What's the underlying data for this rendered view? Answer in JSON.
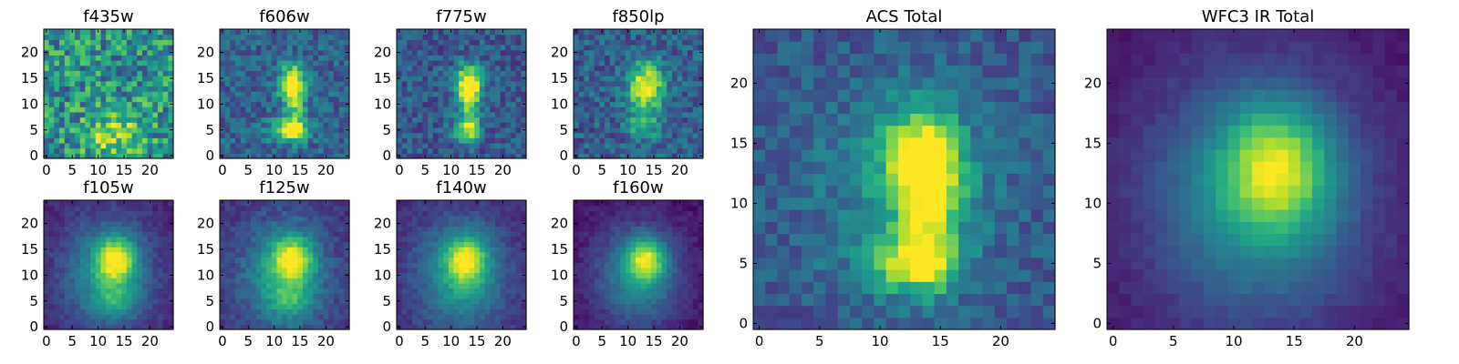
{
  "figure": {
    "background": "#ffffff",
    "colormap": "viridis"
  },
  "chart_data": [
    {
      "type": "heatmap",
      "title": "f435w",
      "grid_size": 24,
      "xticks": [
        0,
        5,
        10,
        15,
        20
      ],
      "yticks": [
        0,
        5,
        10,
        15,
        20
      ],
      "xlim": [
        -0.5,
        24.5
      ],
      "ylim": [
        -0.5,
        24.5
      ],
      "grid": false,
      "model": {
        "noise": 0.55,
        "floor": 0.5,
        "seed": 11,
        "components": [
          {
            "x": 13,
            "y": 4,
            "sx": 4.0,
            "sy": 3.0,
            "amp": 0.35
          }
        ]
      }
    },
    {
      "type": "heatmap",
      "title": "f606w",
      "grid_size": 24,
      "xticks": [
        0,
        5,
        10,
        15,
        20
      ],
      "yticks": [
        0,
        5,
        10,
        15,
        20
      ],
      "xlim": [
        -0.5,
        24.5
      ],
      "ylim": [
        -0.5,
        24.5
      ],
      "grid": false,
      "model": {
        "noise": 0.3,
        "floor": 0.32,
        "seed": 23,
        "components": [
          {
            "x": 13.5,
            "y": 14,
            "sx": 1.8,
            "sy": 2.6,
            "amp": 0.7
          },
          {
            "x": 13,
            "y": 5,
            "sx": 2.6,
            "sy": 1.5,
            "amp": 0.65
          },
          {
            "x": 14,
            "y": 9,
            "sx": 1.3,
            "sy": 3.5,
            "amp": 0.35
          }
        ]
      }
    },
    {
      "type": "heatmap",
      "title": "f775w",
      "grid_size": 24,
      "xticks": [
        0,
        5,
        10,
        15,
        20
      ],
      "yticks": [
        0,
        5,
        10,
        15,
        20
      ],
      "xlim": [
        -0.5,
        24.5
      ],
      "ylim": [
        -0.5,
        24.5
      ],
      "grid": false,
      "model": {
        "noise": 0.3,
        "floor": 0.28,
        "seed": 37,
        "components": [
          {
            "x": 13.5,
            "y": 14,
            "sx": 1.8,
            "sy": 2.6,
            "amp": 0.75
          },
          {
            "x": 13,
            "y": 5,
            "sx": 1.8,
            "sy": 1.6,
            "amp": 0.5
          },
          {
            "x": 13.5,
            "y": 9,
            "sx": 1.3,
            "sy": 3.5,
            "amp": 0.4
          }
        ]
      }
    },
    {
      "type": "heatmap",
      "title": "f850lp",
      "grid_size": 24,
      "xticks": [
        0,
        5,
        10,
        15,
        20
      ],
      "yticks": [
        0,
        5,
        10,
        15,
        20
      ],
      "xlim": [
        -0.5,
        24.5
      ],
      "ylim": [
        -0.5,
        24.5
      ],
      "grid": false,
      "model": {
        "noise": 0.32,
        "floor": 0.3,
        "seed": 41,
        "components": [
          {
            "x": 13.5,
            "y": 13.5,
            "sx": 2.4,
            "sy": 3.2,
            "amp": 0.75
          },
          {
            "x": 13,
            "y": 6,
            "sx": 2.2,
            "sy": 2.0,
            "amp": 0.35
          }
        ]
      }
    },
    {
      "type": "heatmap",
      "title": "f105w",
      "grid_size": 24,
      "xticks": [
        0,
        5,
        10,
        15,
        20
      ],
      "yticks": [
        0,
        5,
        10,
        15,
        20
      ],
      "xlim": [
        -0.5,
        24.5
      ],
      "ylim": [
        -0.5,
        24.5
      ],
      "grid": false,
      "model": {
        "noise": 0.12,
        "floor": 0.1,
        "seed": 53,
        "components": [
          {
            "x": 13.5,
            "y": 13,
            "sx": 2.5,
            "sy": 3.0,
            "amp": 0.6
          },
          {
            "x": 12,
            "y": 10,
            "sx": 6.0,
            "sy": 7.5,
            "amp": 0.45
          },
          {
            "x": 13,
            "y": 5,
            "sx": 2.5,
            "sy": 2.0,
            "amp": 0.2
          }
        ]
      }
    },
    {
      "type": "heatmap",
      "title": "f125w",
      "grid_size": 24,
      "xticks": [
        0,
        5,
        10,
        15,
        20
      ],
      "yticks": [
        0,
        5,
        10,
        15,
        20
      ],
      "xlim": [
        -0.5,
        24.5
      ],
      "ylim": [
        -0.5,
        24.5
      ],
      "grid": false,
      "model": {
        "noise": 0.15,
        "floor": 0.14,
        "seed": 61,
        "components": [
          {
            "x": 13.5,
            "y": 13,
            "sx": 2.6,
            "sy": 3.0,
            "amp": 0.55
          },
          {
            "x": 12,
            "y": 10,
            "sx": 6.0,
            "sy": 7.5,
            "amp": 0.45
          },
          {
            "x": 13,
            "y": 5,
            "sx": 2.5,
            "sy": 2.0,
            "amp": 0.2
          }
        ]
      }
    },
    {
      "type": "heatmap",
      "title": "f140w",
      "grid_size": 24,
      "xticks": [
        0,
        5,
        10,
        15,
        20
      ],
      "yticks": [
        0,
        5,
        10,
        15,
        20
      ],
      "xlim": [
        -0.5,
        24.5
      ],
      "ylim": [
        -0.5,
        24.5
      ],
      "grid": false,
      "model": {
        "noise": 0.12,
        "floor": 0.12,
        "seed": 71,
        "components": [
          {
            "x": 13,
            "y": 13,
            "sx": 2.6,
            "sy": 3.0,
            "amp": 0.55
          },
          {
            "x": 12,
            "y": 10,
            "sx": 6.0,
            "sy": 7.5,
            "amp": 0.45
          }
        ]
      }
    },
    {
      "type": "heatmap",
      "title": "f160w",
      "grid_size": 24,
      "xticks": [
        0,
        5,
        10,
        15,
        20
      ],
      "yticks": [
        0,
        5,
        10,
        15,
        20
      ],
      "xlim": [
        -0.5,
        24.5
      ],
      "ylim": [
        -0.5,
        24.5
      ],
      "grid": false,
      "model": {
        "noise": 0.1,
        "floor": 0.04,
        "seed": 83,
        "components": [
          {
            "x": 13.5,
            "y": 13,
            "sx": 2.4,
            "sy": 2.8,
            "amp": 0.6
          },
          {
            "x": 12,
            "y": 10,
            "sx": 6.0,
            "sy": 7.0,
            "amp": 0.45
          }
        ]
      }
    },
    {
      "type": "heatmap",
      "title": "ACS Total",
      "grid_size": 24,
      "xticks": [
        0,
        5,
        10,
        15,
        20
      ],
      "yticks": [
        0,
        5,
        10,
        15,
        20
      ],
      "xlim": [
        -0.5,
        24.5
      ],
      "ylim": [
        -0.5,
        24.5
      ],
      "grid": false,
      "model": {
        "noise": 0.22,
        "floor": 0.26,
        "seed": 97,
        "components": [
          {
            "x": 13.5,
            "y": 13.5,
            "sx": 2.2,
            "sy": 3.0,
            "amp": 0.7
          },
          {
            "x": 13,
            "y": 5,
            "sx": 2.4,
            "sy": 1.6,
            "amp": 0.6
          },
          {
            "x": 14,
            "y": 9,
            "sx": 1.6,
            "sy": 3.5,
            "amp": 0.35
          },
          {
            "x": 12,
            "y": 11,
            "sx": 6.0,
            "sy": 7.0,
            "amp": 0.2
          }
        ]
      }
    },
    {
      "type": "heatmap",
      "title": "WFC3 IR Total",
      "grid_size": 24,
      "xticks": [
        0,
        5,
        10,
        15,
        20
      ],
      "yticks": [
        0,
        5,
        10,
        15,
        20
      ],
      "xlim": [
        -0.5,
        24.5
      ],
      "ylim": [
        -0.5,
        24.5
      ],
      "grid": false,
      "model": {
        "noise": 0.06,
        "floor": 0.05,
        "seed": 101,
        "components": [
          {
            "x": 13.5,
            "y": 13,
            "sx": 3.0,
            "sy": 3.5,
            "amp": 0.55
          },
          {
            "x": 12,
            "y": 10.5,
            "sx": 6.5,
            "sy": 7.5,
            "amp": 0.45
          }
        ]
      }
    }
  ]
}
